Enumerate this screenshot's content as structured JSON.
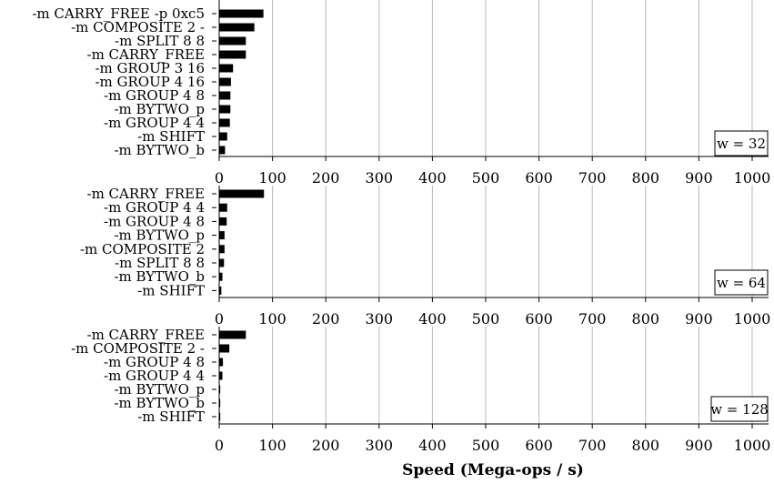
{
  "chart_data": [
    {
      "type": "bar",
      "orientation": "horizontal",
      "label": "w = 32",
      "categories": [
        "-m CARRY_FREE -p 0xc5",
        "-m COMPOSITE 2 -",
        "-m SPLIT 8 8",
        "-m CARRY_FREE",
        "-m GROUP 3 16",
        "-m GROUP 4 16",
        "-m GROUP 4 8",
        "-m BYTWO_p",
        "-m GROUP 4 4",
        "-m SHIFT",
        "-m BYTWO_b"
      ],
      "values": [
        83,
        66,
        50,
        50,
        26,
        22,
        21,
        21,
        20,
        15,
        11
      ],
      "xlim": [
        0,
        1020
      ],
      "xticks": [
        0,
        100,
        200,
        300,
        400,
        500,
        600,
        700,
        800,
        900,
        1000
      ],
      "grid": "vertical"
    },
    {
      "type": "bar",
      "orientation": "horizontal",
      "label": "w = 64",
      "categories": [
        "-m CARRY_FREE",
        "-m GROUP 4 4",
        "-m GROUP 4 8",
        "-m BYTWO_p",
        "-m COMPOSITE 2",
        "-m SPLIT 8 8",
        "-m BYTWO_b",
        "-m SHIFT"
      ],
      "values": [
        84,
        15,
        14,
        10,
        10,
        9,
        6,
        4
      ],
      "xlim": [
        0,
        1020
      ],
      "xticks": [
        0,
        100,
        200,
        300,
        400,
        500,
        600,
        700,
        800,
        900,
        1000
      ],
      "grid": "vertical"
    },
    {
      "type": "bar",
      "orientation": "horizontal",
      "label": "w = 128",
      "categories": [
        "-m CARRY_FREE",
        "-m COMPOSITE 2 -",
        "-m GROUP 4 8",
        "-m GROUP 4 4",
        "-m BYTWO_p",
        "-m BYTWO_b",
        "-m SHIFT"
      ],
      "values": [
        50,
        19,
        7,
        6,
        2,
        2,
        2
      ],
      "xlim": [
        0,
        1020
      ],
      "xticks": [
        0,
        100,
        200,
        300,
        400,
        500,
        600,
        700,
        800,
        900,
        1000
      ],
      "grid": "vertical"
    }
  ],
  "xlabel": "Speed (Mega-ops / s)"
}
